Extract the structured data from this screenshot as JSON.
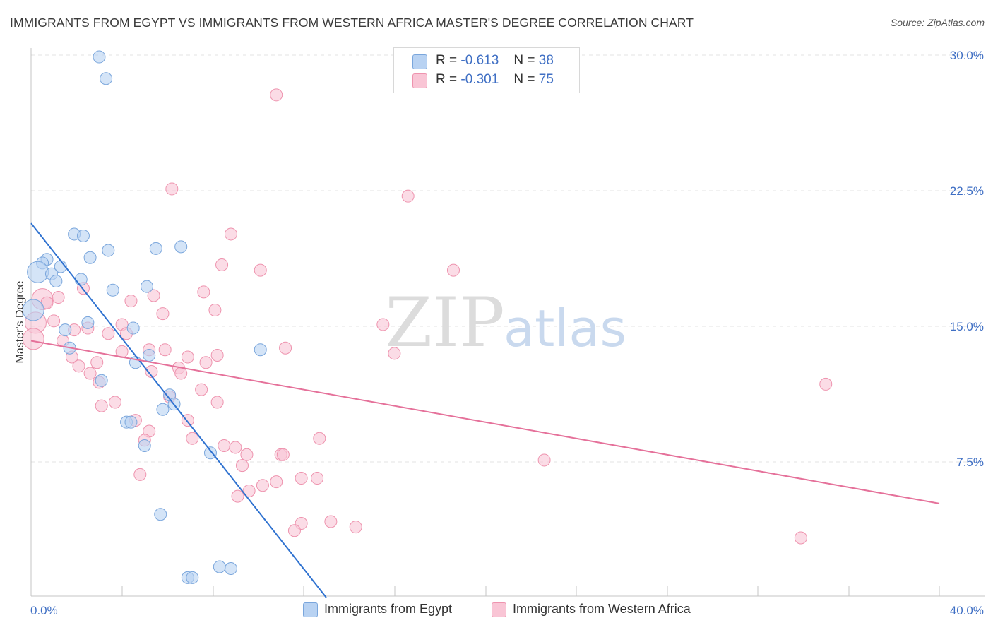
{
  "header": {
    "title": "IMMIGRANTS FROM EGYPT VS IMMIGRANTS FROM WESTERN AFRICA MASTER'S DEGREE CORRELATION CHART",
    "source": "Source: ZipAtlas.com"
  },
  "watermark": {
    "zip": "ZIP",
    "atlas": "atlas"
  },
  "colors": {
    "blue_fill": "#b8d2f2",
    "blue_stroke": "#7aa6dc",
    "blue_line": "#2f72d0",
    "pink_fill": "#f9c5d5",
    "pink_stroke": "#ee93ae",
    "pink_line": "#e5719a",
    "axis_label": "#3f6fc4",
    "grid": "#e3e3e3"
  },
  "legend": {
    "rows": [
      {
        "r_label": "R =",
        "r_value": "-0.613",
        "n_label": "N =",
        "n_value": "38"
      },
      {
        "r_label": "R =",
        "r_value": "-0.301",
        "n_label": "N =",
        "n_value": "75"
      }
    ]
  },
  "chart_data": {
    "type": "scatter",
    "title": "IMMIGRANTS FROM EGYPT VS IMMIGRANTS FROM WESTERN AFRICA MASTER'S DEGREE CORRELATION CHART",
    "xlabel": "",
    "ylabel": "Master's Degree",
    "xlim": [
      0,
      40
    ],
    "ylim": [
      0,
      30.5
    ],
    "x_tick_labels": [
      "0.0%",
      "40.0%"
    ],
    "y_ticks": [
      7.5,
      15.0,
      22.5,
      30.0
    ],
    "y_tick_labels": [
      "7.5%",
      "15.0%",
      "22.5%",
      "30.0%"
    ],
    "grid": true,
    "legend_position": "top-center",
    "series": [
      {
        "name": "Immigrants from Egypt",
        "color": "#b8d2f2",
        "trend": {
          "x": [
            0,
            13.0
          ],
          "y": [
            20.7,
            0
          ]
        },
        "points": [
          {
            "x": 3.0,
            "y": 29.9
          },
          {
            "x": 3.3,
            "y": 28.7
          },
          {
            "x": 1.9,
            "y": 20.1
          },
          {
            "x": 2.3,
            "y": 20.0
          },
          {
            "x": 3.4,
            "y": 19.2
          },
          {
            "x": 5.5,
            "y": 19.3
          },
          {
            "x": 6.6,
            "y": 19.4
          },
          {
            "x": 2.6,
            "y": 18.8
          },
          {
            "x": 0.7,
            "y": 18.7
          },
          {
            "x": 0.5,
            "y": 18.5
          },
          {
            "x": 1.3,
            "y": 18.3
          },
          {
            "x": 0.3,
            "y": 18.0,
            "big": true
          },
          {
            "x": 0.9,
            "y": 17.9
          },
          {
            "x": 2.2,
            "y": 17.6
          },
          {
            "x": 1.1,
            "y": 17.5
          },
          {
            "x": 5.1,
            "y": 17.2
          },
          {
            "x": 3.6,
            "y": 17.0
          },
          {
            "x": 0.1,
            "y": 15.9,
            "big": true
          },
          {
            "x": 2.5,
            "y": 15.2
          },
          {
            "x": 4.5,
            "y": 14.9
          },
          {
            "x": 1.5,
            "y": 14.8
          },
          {
            "x": 1.7,
            "y": 13.8
          },
          {
            "x": 5.2,
            "y": 13.4
          },
          {
            "x": 10.1,
            "y": 13.7
          },
          {
            "x": 4.6,
            "y": 13.0
          },
          {
            "x": 3.1,
            "y": 12.0
          },
          {
            "x": 6.1,
            "y": 11.2
          },
          {
            "x": 6.3,
            "y": 10.7
          },
          {
            "x": 5.8,
            "y": 10.4
          },
          {
            "x": 4.2,
            "y": 9.7
          },
          {
            "x": 4.4,
            "y": 9.7
          },
          {
            "x": 5.0,
            "y": 8.4
          },
          {
            "x": 7.9,
            "y": 8.0
          },
          {
            "x": 5.7,
            "y": 4.6
          },
          {
            "x": 8.3,
            "y": 1.7
          },
          {
            "x": 8.8,
            "y": 1.6
          },
          {
            "x": 6.9,
            "y": 1.1
          },
          {
            "x": 7.1,
            "y": 1.1
          }
        ]
      },
      {
        "name": "Immigrants from Western Africa",
        "color": "#f9c5d5",
        "trend": {
          "x": [
            0,
            40
          ],
          "y": [
            14.2,
            5.2
          ]
        },
        "points": [
          {
            "x": 10.8,
            "y": 27.8
          },
          {
            "x": 6.2,
            "y": 22.6
          },
          {
            "x": 16.6,
            "y": 22.2
          },
          {
            "x": 8.8,
            "y": 20.1
          },
          {
            "x": 8.4,
            "y": 18.4
          },
          {
            "x": 10.1,
            "y": 18.1
          },
          {
            "x": 18.6,
            "y": 18.1
          },
          {
            "x": 2.3,
            "y": 17.1
          },
          {
            "x": 7.6,
            "y": 16.9
          },
          {
            "x": 5.4,
            "y": 16.7
          },
          {
            "x": 0.5,
            "y": 16.5,
            "big": true
          },
          {
            "x": 1.2,
            "y": 16.6
          },
          {
            "x": 0.7,
            "y": 16.3
          },
          {
            "x": 4.4,
            "y": 16.4
          },
          {
            "x": 8.1,
            "y": 15.9
          },
          {
            "x": 5.8,
            "y": 15.7
          },
          {
            "x": 0.2,
            "y": 15.2,
            "big": true
          },
          {
            "x": 1.0,
            "y": 15.3
          },
          {
            "x": 4.0,
            "y": 15.1
          },
          {
            "x": 15.5,
            "y": 15.1
          },
          {
            "x": 2.5,
            "y": 14.9
          },
          {
            "x": 1.9,
            "y": 14.8
          },
          {
            "x": 3.4,
            "y": 14.6
          },
          {
            "x": 4.2,
            "y": 14.6
          },
          {
            "x": 0.1,
            "y": 14.3,
            "big": true
          },
          {
            "x": 1.4,
            "y": 14.2
          },
          {
            "x": 11.2,
            "y": 13.8
          },
          {
            "x": 5.2,
            "y": 13.7
          },
          {
            "x": 5.9,
            "y": 13.7
          },
          {
            "x": 4.0,
            "y": 13.6
          },
          {
            "x": 8.2,
            "y": 13.4
          },
          {
            "x": 16.0,
            "y": 13.5
          },
          {
            "x": 1.8,
            "y": 13.3
          },
          {
            "x": 6.9,
            "y": 13.3
          },
          {
            "x": 7.7,
            "y": 13.0
          },
          {
            "x": 2.9,
            "y": 13.0
          },
          {
            "x": 2.1,
            "y": 12.8
          },
          {
            "x": 6.5,
            "y": 12.7
          },
          {
            "x": 5.3,
            "y": 12.5
          },
          {
            "x": 2.6,
            "y": 12.4
          },
          {
            "x": 6.6,
            "y": 12.4
          },
          {
            "x": 3.0,
            "y": 11.9
          },
          {
            "x": 35.0,
            "y": 11.8
          },
          {
            "x": 7.5,
            "y": 11.5
          },
          {
            "x": 6.1,
            "y": 11.1
          },
          {
            "x": 8.2,
            "y": 10.8
          },
          {
            "x": 3.7,
            "y": 10.8
          },
          {
            "x": 3.1,
            "y": 10.6
          },
          {
            "x": 6.9,
            "y": 9.8
          },
          {
            "x": 4.6,
            "y": 9.8
          },
          {
            "x": 5.2,
            "y": 9.2
          },
          {
            "x": 7.1,
            "y": 8.8
          },
          {
            "x": 12.7,
            "y": 8.8
          },
          {
            "x": 5.0,
            "y": 8.7
          },
          {
            "x": 8.5,
            "y": 8.4
          },
          {
            "x": 9.0,
            "y": 8.3
          },
          {
            "x": 9.5,
            "y": 7.9
          },
          {
            "x": 11.0,
            "y": 7.9
          },
          {
            "x": 11.1,
            "y": 7.9
          },
          {
            "x": 22.6,
            "y": 7.6
          },
          {
            "x": 9.3,
            "y": 7.3
          },
          {
            "x": 4.8,
            "y": 6.8
          },
          {
            "x": 11.9,
            "y": 6.6
          },
          {
            "x": 12.6,
            "y": 6.6
          },
          {
            "x": 10.8,
            "y": 6.4
          },
          {
            "x": 10.2,
            "y": 6.2
          },
          {
            "x": 9.6,
            "y": 5.9
          },
          {
            "x": 9.1,
            "y": 5.6
          },
          {
            "x": 13.2,
            "y": 4.2
          },
          {
            "x": 11.9,
            "y": 4.1
          },
          {
            "x": 14.3,
            "y": 3.9
          },
          {
            "x": 11.6,
            "y": 3.7
          },
          {
            "x": 33.9,
            "y": 3.3
          }
        ]
      }
    ]
  }
}
